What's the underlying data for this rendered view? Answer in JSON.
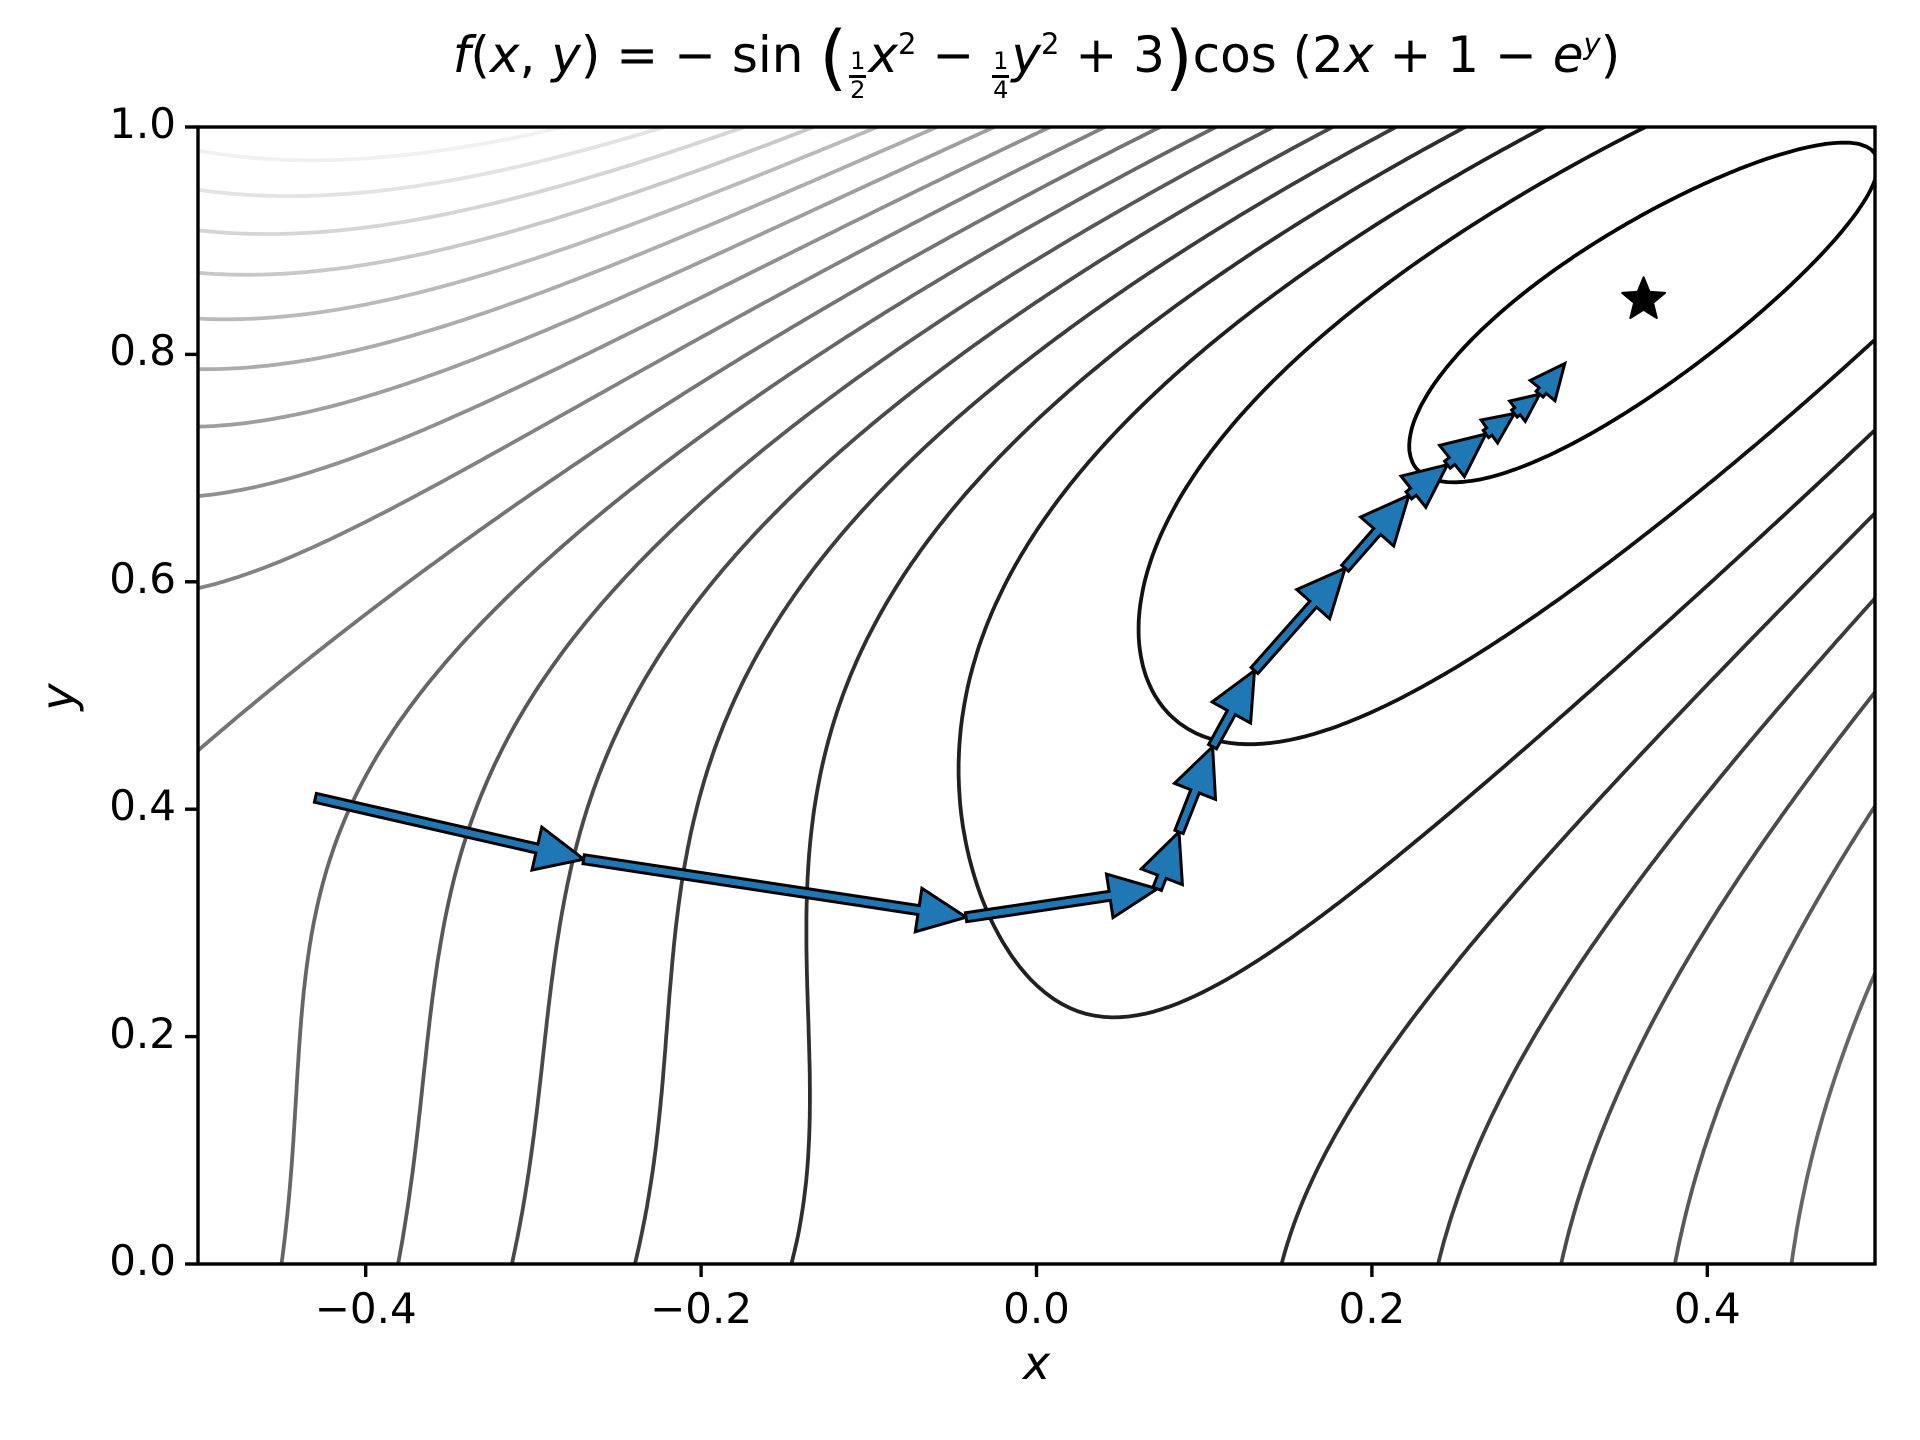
{
  "figure": {
    "background": "#ffffff"
  },
  "title": {
    "plain": "f(x, y) = −sin (½x² − ¼y² + 3)cos (2x + 1 − eʸ)",
    "parts": {
      "f": "f",
      "p1": "(",
      "x1": "x",
      "comma": ", ",
      "y1": "y",
      "eq": ") = − sin ",
      "bp1": "(",
      "f1n": "1",
      "f1d": "2",
      "x2": "x",
      "s1": "2",
      "minus": " − ",
      "f2n": "1",
      "f2d": "4",
      "y2": "y",
      "s2": "2",
      "plus": " + 3",
      "bp2": ")",
      "cos": "cos (2",
      "x3": "x",
      "mid": " + 1 − ",
      "e": "e",
      "s3": "y",
      "end": ")"
    }
  },
  "axes": {
    "xlabel": "x",
    "ylabel": "y",
    "xticks": [
      {
        "label": "−0.4",
        "value": -0.4
      },
      {
        "label": "−0.2",
        "value": -0.2
      },
      {
        "label": "0.0",
        "value": 0.0
      },
      {
        "label": "0.2",
        "value": 0.2
      },
      {
        "label": "0.4",
        "value": 0.4
      }
    ],
    "yticks": [
      {
        "label": "0.0",
        "value": 0.0
      },
      {
        "label": "0.2",
        "value": 0.2
      },
      {
        "label": "0.4",
        "value": 0.4
      },
      {
        "label": "0.6",
        "value": 0.6
      },
      {
        "label": "0.8",
        "value": 0.8
      },
      {
        "label": "1.0",
        "value": 1.0
      }
    ]
  },
  "chart_data": {
    "type": "contour",
    "title": "f(x, y) = −sin (½x² − ¼y² + 3)cos (2x + 1 − eʸ)",
    "xlabel": "x",
    "ylabel": "y",
    "xlim": [
      -0.5,
      0.5
    ],
    "ylim": [
      0.0,
      1.0
    ],
    "grid": false,
    "legend": "none",
    "function_text": "f(x,y) = -sin(0.5·x² - 0.25·y² + 3)·cos(2x + 1 - e^y)",
    "f_coeffs": {
      "a": 0.5,
      "b": 0.25,
      "c": 3,
      "d": 2,
      "e": 1
    },
    "contour": {
      "grid_n": 201,
      "level_min": -0.2,
      "level_max": 0.225,
      "level_step": 0.025,
      "colormap": "gray",
      "line_width": 3.8
    },
    "descent_path": {
      "description": "gradient-descent trajectory drawn as blue arrows",
      "color": "#1f77b4",
      "edge_color": "#000000",
      "shaft_width": 9,
      "head_length": 48,
      "head_width": 44,
      "points": [
        [
          -0.43,
          0.41
        ],
        [
          -0.27,
          0.356
        ],
        [
          -0.042,
          0.305
        ],
        [
          0.072,
          0.33
        ],
        [
          0.085,
          0.38
        ],
        [
          0.105,
          0.455
        ],
        [
          0.13,
          0.522
        ],
        [
          0.184,
          0.612
        ],
        [
          0.222,
          0.676
        ],
        [
          0.245,
          0.703
        ],
        [
          0.268,
          0.73
        ],
        [
          0.285,
          0.748
        ],
        [
          0.3,
          0.765
        ],
        [
          0.315,
          0.792
        ]
      ]
    },
    "optimum": {
      "x": 0.362,
      "y": 0.848,
      "marker": "star",
      "color": "#000000"
    }
  }
}
